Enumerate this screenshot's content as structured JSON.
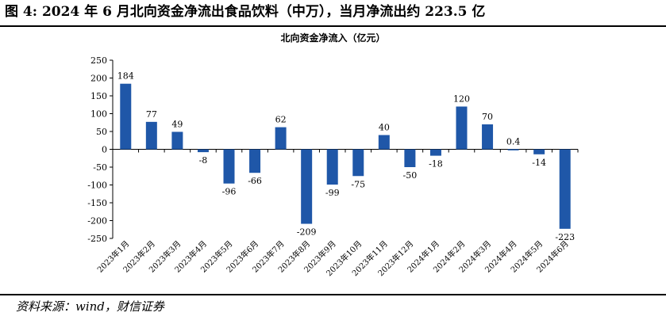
{
  "figure": {
    "title": "图 4:  2024 年 6 月北向资金净流出食品饮料（中万），当月净流出约 223.5 亿",
    "source": "资料来源：wind，财信证券"
  },
  "colors": {
    "bar": "#1F57A8",
    "axis": "#000000"
  },
  "chart_data": {
    "type": "bar",
    "title": "北向资金净流入（亿元）",
    "xlabel": "",
    "ylabel": "",
    "ylim": [
      -250,
      250
    ],
    "yticks": [
      250,
      200,
      150,
      100,
      50,
      0,
      -50,
      -100,
      -150,
      -200,
      -250
    ],
    "grid": false,
    "legend": "none",
    "categories": [
      "2023年1月",
      "2023年2月",
      "2023年3月",
      "2023年4月",
      "2023年5月",
      "2023年6月",
      "2023年7月",
      "2023年8月",
      "2023年9月",
      "2023年10月",
      "2023年11月",
      "2023年12月",
      "2024年1月",
      "2024年2月",
      "2024年3月",
      "2024年4月",
      "2024年5月",
      "2024年6月"
    ],
    "values": [
      184,
      77,
      49,
      -8,
      -96,
      -66,
      62,
      -209,
      -99,
      -75,
      40,
      -50,
      -18,
      120,
      70,
      0.4,
      -14,
      -223
    ],
    "data_labels": [
      "184",
      "77",
      "49",
      "-8",
      "-96",
      "-66",
      "62",
      "-209",
      "-99",
      "-75",
      "40",
      "-50",
      "-18",
      "120",
      "70",
      "0.4",
      "-14",
      "-223"
    ]
  }
}
